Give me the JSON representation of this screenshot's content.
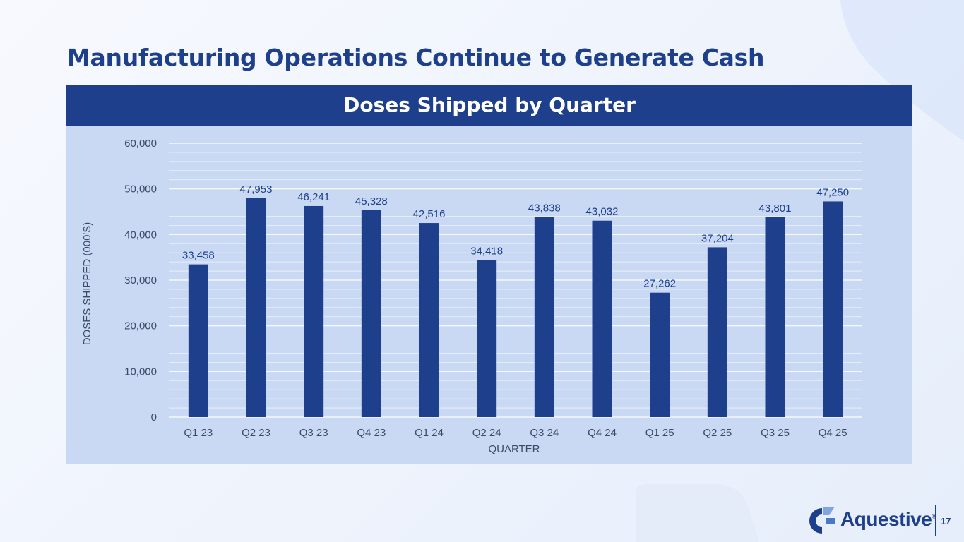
{
  "slide": {
    "title": "Manufacturing Operations Continue to Generate Cash",
    "page_number": "17"
  },
  "logo": {
    "text": "Aquestive",
    "registered": "®"
  },
  "colors": {
    "brand_navy": "#1e3f8c",
    "panel_bg": "#c9d8f3",
    "axis_text": "#3a4a66",
    "gridline": "#ffffff"
  },
  "chart_data": {
    "type": "bar",
    "title": "Doses Shipped by Quarter",
    "xlabel": "QUARTER",
    "ylabel": "DOSES SHIPPED (000'S)",
    "ylim": [
      0,
      60000
    ],
    "yticks": [
      "0",
      "10,000",
      "20,000",
      "30,000",
      "40,000",
      "50,000",
      "60,000"
    ],
    "categories": [
      "Q1 23",
      "Q2 23",
      "Q3 23",
      "Q4 23",
      "Q1 24",
      "Q2 24",
      "Q3 24",
      "Q4 24",
      "Q1 25",
      "Q2 25",
      "Q3 25",
      "Q4 25"
    ],
    "values": [
      33458,
      47953,
      46241,
      45328,
      42516,
      34418,
      43838,
      43032,
      27262,
      37204,
      43801,
      47250
    ],
    "value_labels": [
      "33,458",
      "47,953",
      "46,241",
      "45,328",
      "42,516",
      "34,418",
      "43,838",
      "43,032",
      "27,262",
      "37,204",
      "43,801",
      "47,250"
    ],
    "grid": true,
    "legend": "none"
  }
}
